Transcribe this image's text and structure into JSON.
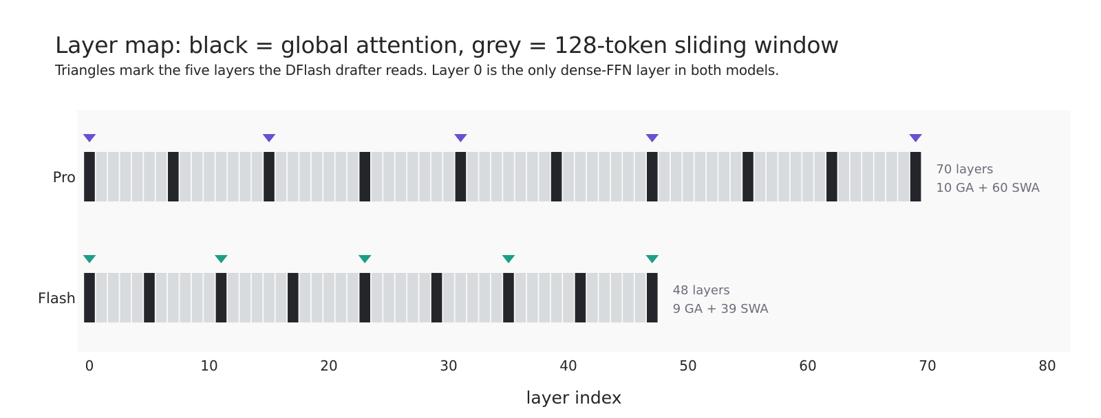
{
  "title": "Layer map: black = global attention, grey = 128-token sliding window",
  "subtitle": "Triangles mark the five layers the DFlash drafter reads. Layer 0 is the only dense-FFN layer in both models.",
  "colors": {
    "global": "#24262b",
    "sliding": "#d8dbde",
    "panel_bg": "#f9f9f9",
    "pro_marker": "#6a4fd0",
    "flash_marker": "#1d9e86",
    "annotation": "#6b6e7a"
  },
  "chart_data": {
    "type": "heatmap",
    "xlabel": "layer index",
    "xlim": [
      0,
      80
    ],
    "xticks": [
      0,
      10,
      20,
      30,
      40,
      50,
      60,
      70,
      80
    ],
    "grid": false,
    "models": [
      {
        "name": "Pro",
        "num_layers": 70,
        "global_layers": [
          0,
          7,
          15,
          23,
          31,
          39,
          47,
          55,
          62,
          69
        ],
        "drafter_layers": [
          0,
          15,
          31,
          47,
          69
        ],
        "annotation_line1": "70 layers",
        "annotation_line2": "10 GA + 60 SWA",
        "marker_color": "#6a4fd0"
      },
      {
        "name": "Flash",
        "num_layers": 48,
        "global_layers": [
          0,
          5,
          11,
          17,
          23,
          29,
          35,
          41,
          47
        ],
        "drafter_layers": [
          0,
          11,
          23,
          35,
          47
        ],
        "annotation_line1": "48 layers",
        "annotation_line2": "9 GA + 39 SWA",
        "marker_color": "#1d9e86"
      }
    ]
  }
}
